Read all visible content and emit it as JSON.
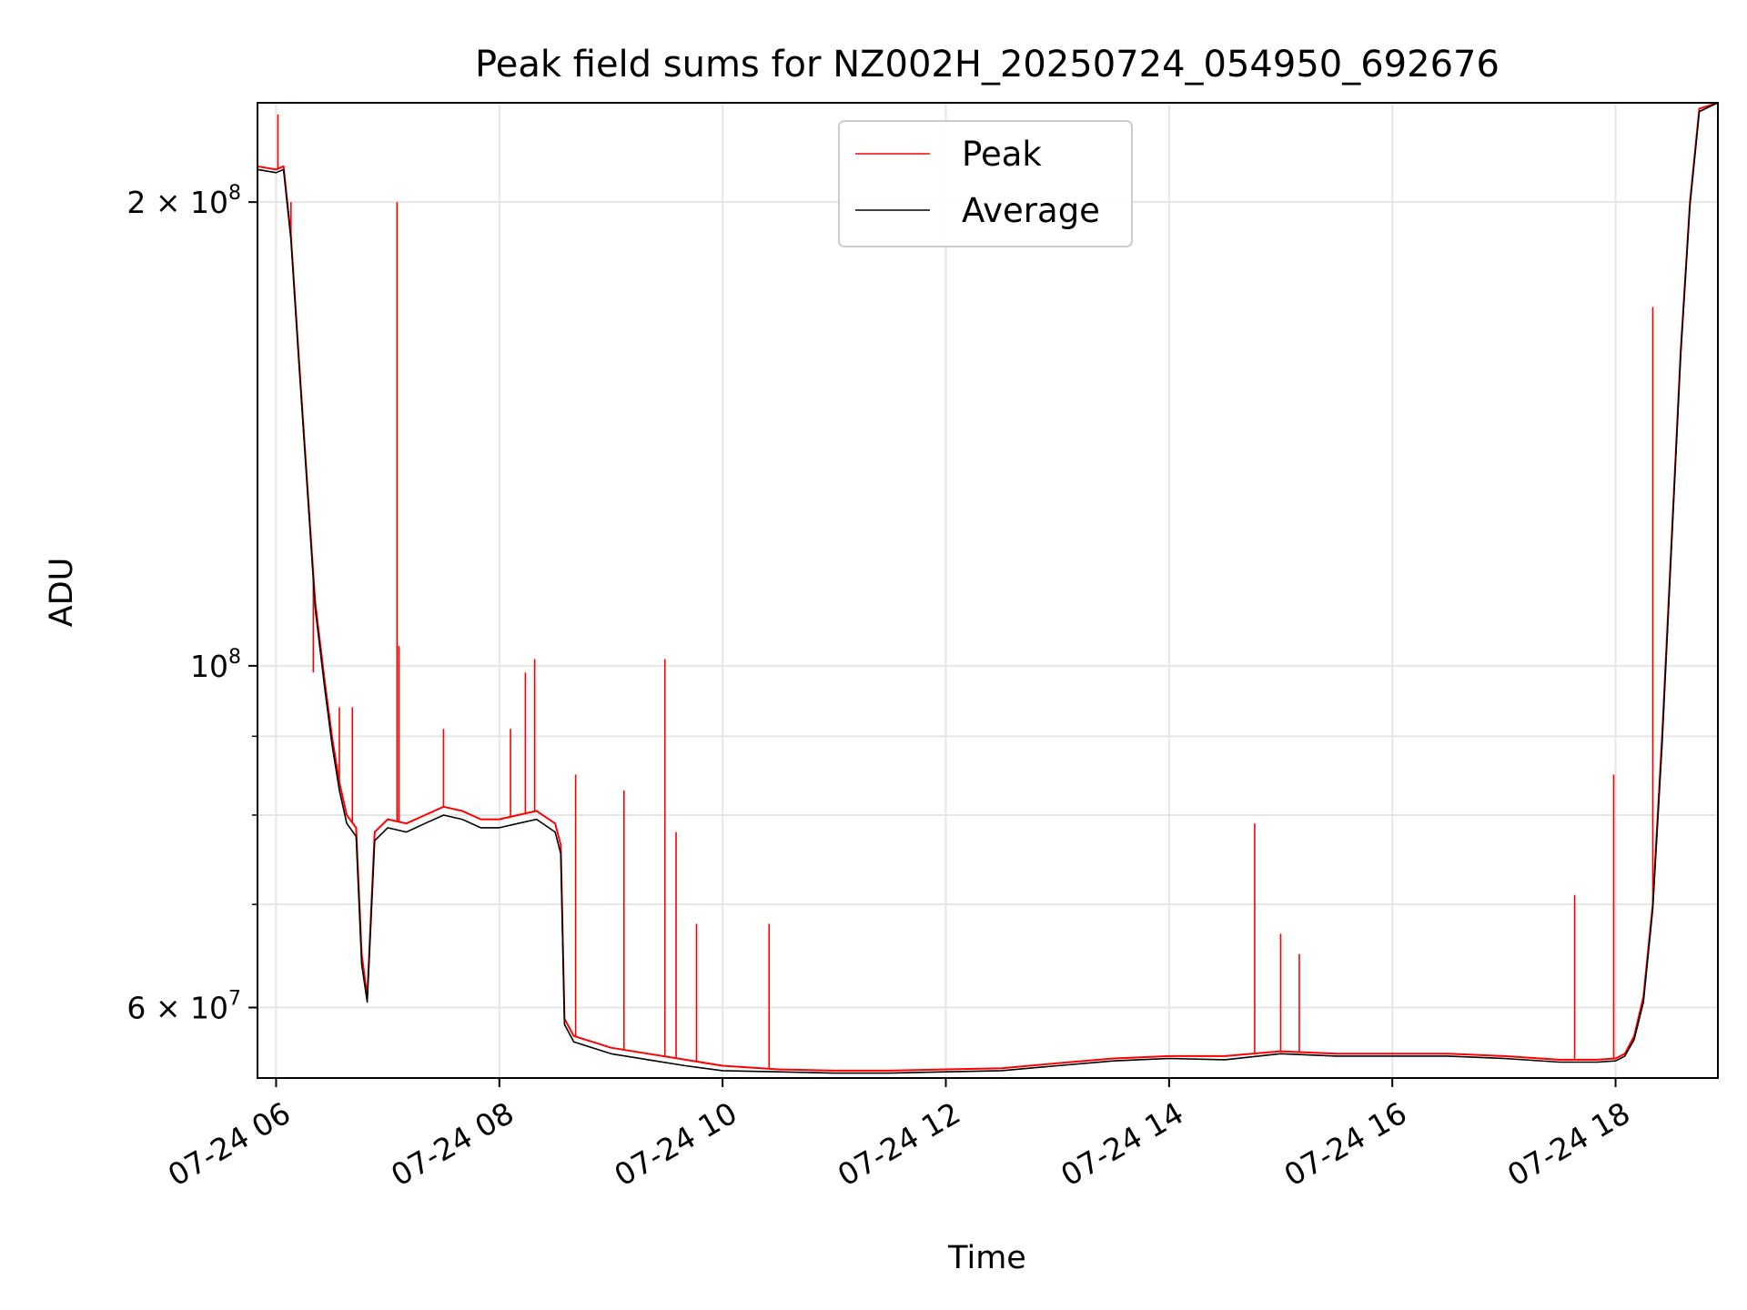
{
  "chart_data": {
    "type": "line",
    "title": "Peak field sums for NZ002H_20250724_054950_692676",
    "xlabel": "Time",
    "ylabel": "ADU",
    "yscale": "log",
    "xlim": [
      "2025-07-24 05:50",
      "2025-07-24 18:55"
    ],
    "ylim": [
      54000000,
      232000000
    ],
    "xticks": [
      {
        "t": "2025-07-24 06:00",
        "label": "07-24 06"
      },
      {
        "t": "2025-07-24 08:00",
        "label": "07-24 08"
      },
      {
        "t": "2025-07-24 10:00",
        "label": "07-24 10"
      },
      {
        "t": "2025-07-24 12:00",
        "label": "07-24 12"
      },
      {
        "t": "2025-07-24 14:00",
        "label": "07-24 14"
      },
      {
        "t": "2025-07-24 16:00",
        "label": "07-24 16"
      },
      {
        "t": "2025-07-24 18:00",
        "label": "07-24 18"
      }
    ],
    "yticks_major": [
      {
        "v": 60000000,
        "base": "6 × 10",
        "exp": "7"
      },
      {
        "v": 100000000,
        "base": "10",
        "exp": "8"
      },
      {
        "v": 200000000,
        "base": "2 × 10",
        "exp": "8"
      }
    ],
    "yticks_minor": [
      70000000,
      80000000,
      90000000
    ],
    "grid": true,
    "legend_position": "top-center",
    "series": [
      {
        "name": "Peak",
        "color": "#ff0000",
        "x": [
          "2025-07-24 05:50",
          "2025-07-24 06:00",
          "2025-07-24 06:04",
          "2025-07-24 06:08",
          "2025-07-24 06:12",
          "2025-07-24 06:17",
          "2025-07-24 06:21",
          "2025-07-24 06:26",
          "2025-07-24 06:30",
          "2025-07-24 06:34",
          "2025-07-24 06:38",
          "2025-07-24 06:43",
          "2025-07-24 06:46",
          "2025-07-24 06:49",
          "2025-07-24 06:53",
          "2025-07-24 07:00",
          "2025-07-24 07:10",
          "2025-07-24 07:20",
          "2025-07-24 07:30",
          "2025-07-24 07:40",
          "2025-07-24 07:50",
          "2025-07-24 08:00",
          "2025-07-24 08:10",
          "2025-07-24 08:20",
          "2025-07-24 08:30",
          "2025-07-24 08:33",
          "2025-07-24 08:35",
          "2025-07-24 08:40",
          "2025-07-24 08:50",
          "2025-07-24 09:00",
          "2025-07-24 09:20",
          "2025-07-24 09:40",
          "2025-07-24 10:00",
          "2025-07-24 10:30",
          "2025-07-24 11:00",
          "2025-07-24 11:30",
          "2025-07-24 12:00",
          "2025-07-24 12:30",
          "2025-07-24 13:00",
          "2025-07-24 13:30",
          "2025-07-24 14:00",
          "2025-07-24 14:30",
          "2025-07-24 15:00",
          "2025-07-24 15:30",
          "2025-07-24 16:00",
          "2025-07-24 16:30",
          "2025-07-24 17:00",
          "2025-07-24 17:30",
          "2025-07-24 17:50",
          "2025-07-24 18:00",
          "2025-07-24 18:05",
          "2025-07-24 18:10",
          "2025-07-24 18:15",
          "2025-07-24 18:20",
          "2025-07-24 18:25",
          "2025-07-24 18:30",
          "2025-07-24 18:35",
          "2025-07-24 18:40",
          "2025-07-24 18:45",
          "2025-07-24 18:55"
        ],
        "y": [
          211000000,
          210000000,
          211000000,
          190000000,
          160000000,
          130000000,
          110000000,
          98000000,
          90000000,
          84000000,
          80000000,
          78500000,
          65000000,
          61000000,
          78000000,
          79500000,
          79000000,
          80000000,
          81000000,
          80500000,
          79500000,
          79500000,
          80000000,
          80500000,
          79000000,
          76500000,
          59000000,
          57500000,
          57000000,
          56500000,
          56000000,
          55500000,
          55000000,
          54700000,
          54600000,
          54600000,
          54700000,
          54800000,
          55200000,
          55600000,
          55800000,
          55800000,
          56200000,
          56000000,
          56000000,
          56000000,
          55800000,
          55500000,
          55500000,
          55600000,
          56000000,
          57500000,
          61000000,
          70000000,
          90000000,
          120000000,
          160000000,
          200000000,
          230000000,
          232000000
        ],
        "spikes": [
          {
            "t": "2025-07-24 06:01",
            "y": 228000000
          },
          {
            "t": "2025-07-24 06:08",
            "y": 200000000
          },
          {
            "t": "2025-07-24 06:20",
            "y": 99000000
          },
          {
            "t": "2025-07-24 06:34",
            "y": 94000000
          },
          {
            "t": "2025-07-24 06:41",
            "y": 94000000
          },
          {
            "t": "2025-07-24 07:05",
            "y": 200000000
          },
          {
            "t": "2025-07-24 07:06",
            "y": 103000000
          },
          {
            "t": "2025-07-24 07:30",
            "y": 91000000
          },
          {
            "t": "2025-07-24 08:06",
            "y": 91000000
          },
          {
            "t": "2025-07-24 08:14",
            "y": 99000000
          },
          {
            "t": "2025-07-24 08:19",
            "y": 101000000
          },
          {
            "t": "2025-07-24 08:41",
            "y": 85000000
          },
          {
            "t": "2025-07-24 09:07",
            "y": 83000000
          },
          {
            "t": "2025-07-24 09:29",
            "y": 101000000
          },
          {
            "t": "2025-07-24 09:35",
            "y": 78000000
          },
          {
            "t": "2025-07-24 09:46",
            "y": 68000000
          },
          {
            "t": "2025-07-24 10:25",
            "y": 68000000
          },
          {
            "t": "2025-07-24 14:46",
            "y": 79000000
          },
          {
            "t": "2025-07-24 15:00",
            "y": 67000000
          },
          {
            "t": "2025-07-24 15:10",
            "y": 65000000
          },
          {
            "t": "2025-07-24 17:38",
            "y": 71000000
          },
          {
            "t": "2025-07-24 17:59",
            "y": 85000000
          },
          {
            "t": "2025-07-24 18:20",
            "y": 171000000
          }
        ]
      },
      {
        "name": "Average",
        "color": "#000000",
        "x": [
          "2025-07-24 05:50",
          "2025-07-24 06:00",
          "2025-07-24 06:04",
          "2025-07-24 06:08",
          "2025-07-24 06:12",
          "2025-07-24 06:17",
          "2025-07-24 06:21",
          "2025-07-24 06:26",
          "2025-07-24 06:30",
          "2025-07-24 06:34",
          "2025-07-24 06:38",
          "2025-07-24 06:43",
          "2025-07-24 06:46",
          "2025-07-24 06:49",
          "2025-07-24 06:53",
          "2025-07-24 07:00",
          "2025-07-24 07:10",
          "2025-07-24 07:20",
          "2025-07-24 07:30",
          "2025-07-24 07:40",
          "2025-07-24 07:50",
          "2025-07-24 08:00",
          "2025-07-24 08:10",
          "2025-07-24 08:20",
          "2025-07-24 08:30",
          "2025-07-24 08:33",
          "2025-07-24 08:35",
          "2025-07-24 08:40",
          "2025-07-24 08:50",
          "2025-07-24 09:00",
          "2025-07-24 09:20",
          "2025-07-24 09:40",
          "2025-07-24 10:00",
          "2025-07-24 10:30",
          "2025-07-24 11:00",
          "2025-07-24 11:30",
          "2025-07-24 12:00",
          "2025-07-24 12:30",
          "2025-07-24 13:00",
          "2025-07-24 13:30",
          "2025-07-24 14:00",
          "2025-07-24 14:30",
          "2025-07-24 15:00",
          "2025-07-24 15:30",
          "2025-07-24 16:00",
          "2025-07-24 16:30",
          "2025-07-24 17:00",
          "2025-07-24 17:30",
          "2025-07-24 17:50",
          "2025-07-24 18:00",
          "2025-07-24 18:05",
          "2025-07-24 18:10",
          "2025-07-24 18:15",
          "2025-07-24 18:20",
          "2025-07-24 18:25",
          "2025-07-24 18:30",
          "2025-07-24 18:35",
          "2025-07-24 18:40",
          "2025-07-24 18:45",
          "2025-07-24 18:55"
        ],
        "y": [
          210000000,
          209000000,
          210000000,
          189000000,
          159000000,
          129000000,
          109000000,
          97000000,
          89000000,
          83000000,
          79000000,
          77500000,
          64000000,
          60500000,
          77000000,
          78500000,
          78000000,
          79000000,
          80000000,
          79500000,
          78500000,
          78500000,
          79000000,
          79500000,
          78000000,
          75500000,
          58500000,
          57000000,
          56500000,
          56000000,
          55500000,
          55000000,
          54600000,
          54500000,
          54400000,
          54400000,
          54500000,
          54600000,
          55000000,
          55400000,
          55600000,
          55500000,
          56000000,
          55800000,
          55800000,
          55800000,
          55600000,
          55300000,
          55300000,
          55400000,
          55800000,
          57200000,
          60500000,
          69500000,
          89000000,
          119000000,
          159000000,
          199000000,
          229000000,
          232000000
        ]
      }
    ]
  }
}
